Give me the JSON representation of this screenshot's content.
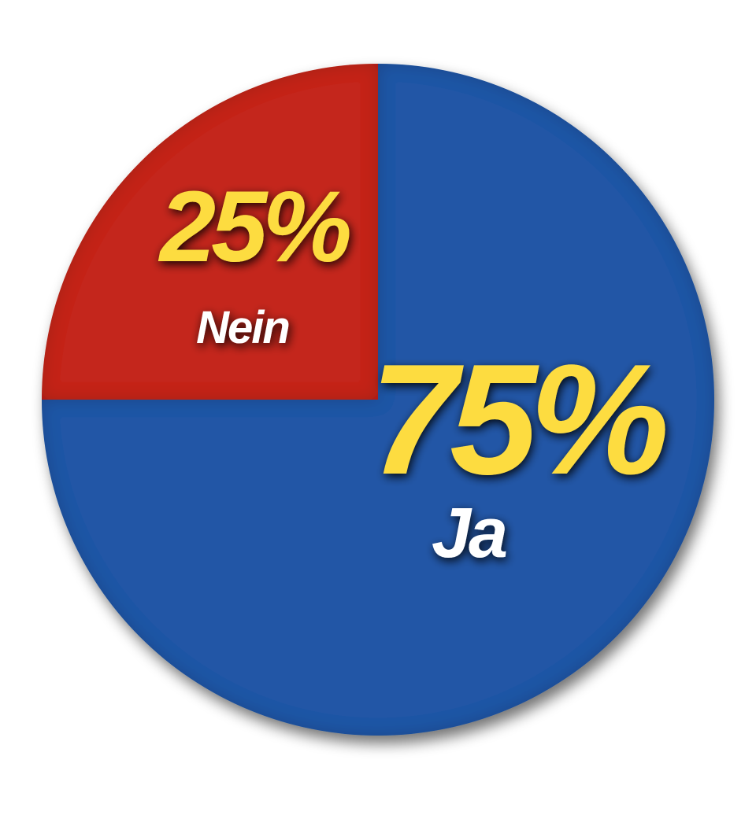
{
  "chart_data": {
    "type": "pie",
    "categories": [
      "Nein",
      "Ja"
    ],
    "values": [
      25,
      75
    ],
    "value_labels": [
      "25%",
      "75%"
    ],
    "title": "",
    "colors": {
      "Nein": "#c4271e",
      "Ja": "#2157a6",
      "percent_text": "#fddc3f",
      "label_text": "#ffffff"
    },
    "start_angle_deg": -90,
    "direction": "counterclockwise-first-slice"
  }
}
